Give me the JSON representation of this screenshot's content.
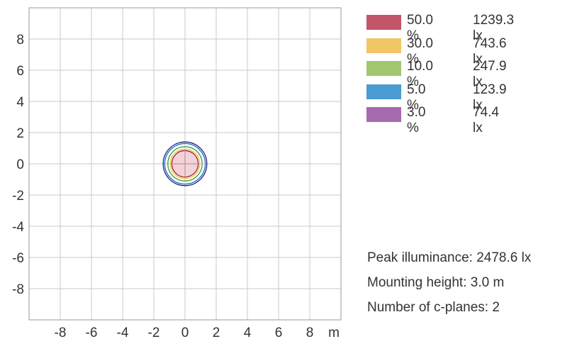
{
  "chart_data": {
    "type": "contour",
    "x_ticks": [
      "-8",
      "-6",
      "-4",
      "-2",
      "0",
      "2",
      "4",
      "6",
      "8"
    ],
    "y_ticks": [
      "8",
      "6",
      "4",
      "2",
      "0",
      "-2",
      "-4",
      "-6",
      "-8"
    ],
    "x_unit": "m",
    "xlim": [
      -10,
      10
    ],
    "ylim": [
      -10,
      10
    ],
    "grid": true,
    "center": [
      0,
      0
    ],
    "contours": [
      {
        "level": "3.0 %",
        "value": "74.4 lx",
        "radius": 1.4,
        "color": "#1a237e"
      },
      {
        "level": "5.0 %",
        "value": "123.9 lx",
        "radius": 1.3,
        "color": "#1f5fbf"
      },
      {
        "level": "10.0 %",
        "value": "247.9 lx",
        "radius": 1.1,
        "color": "#3a9e3a"
      },
      {
        "level": "30.0 %",
        "value": "743.6 lx",
        "radius": 0.95,
        "color": "#e8c53a"
      },
      {
        "level": "50.0 %",
        "value": "1239.3 lx",
        "radius": 0.85,
        "color": "#b01030"
      }
    ],
    "fill_color": "#f2d3d8"
  },
  "legend": [
    {
      "percent": "50.0 %",
      "lux": "1239.3 lx",
      "color": "#c2556a"
    },
    {
      "percent": "30.0 %",
      "lux": "743.6 lx",
      "color": "#f1c664"
    },
    {
      "percent": "10.0 %",
      "lux": "247.9 lx",
      "color": "#a2c66f"
    },
    {
      "percent": "5.0 %",
      "lux": "123.9 lx",
      "color": "#4a9bd2"
    },
    {
      "percent": "3.0 %",
      "lux": "74.4 lx",
      "color": "#a56ab0"
    }
  ],
  "info": {
    "peak": "Peak illuminance: 2478.6 lx",
    "height": "Mounting height: 3.0 m",
    "planes": "Number of c-planes: 2"
  }
}
